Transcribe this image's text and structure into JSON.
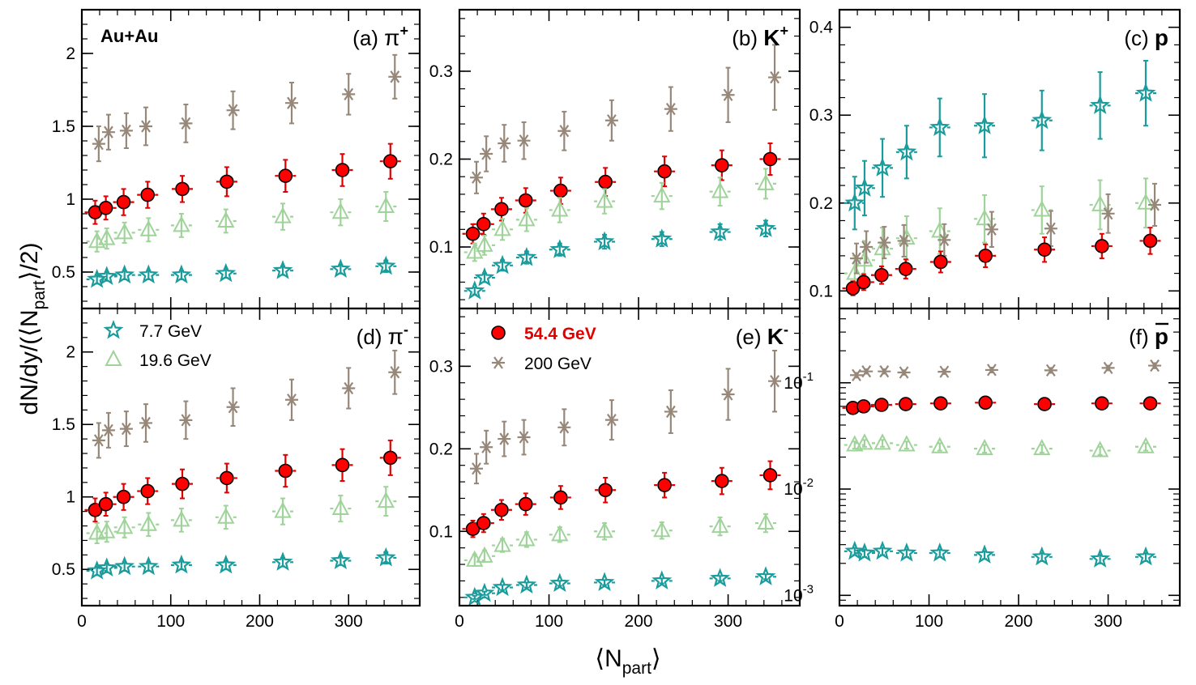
{
  "figure": {
    "xlabel": "⟨N",
    "xlabel_sub": "part",
    "xlabel_close": "⟩",
    "ylabel": "dN/dy/(⟨N",
    "ylabel_sub": "part",
    "ylabel_close": "⟩/2)",
    "system": "Au+Au"
  },
  "legend": [
    {
      "name": "7.7 GeV",
      "marker": "star",
      "color": "#1a9c9c"
    },
    {
      "name": "19.6 GeV",
      "marker": "triangle",
      "color": "#9fd39a"
    },
    {
      "name": "54.4 GeV",
      "marker": "circle",
      "color": "#e00000",
      "bold": true
    },
    {
      "name": "200 GeV",
      "marker": "asterisk",
      "color": "#968778"
    }
  ],
  "chart_data": [
    {
      "type": "scatter",
      "panel": "a",
      "tag": "(a)",
      "particle": "π",
      "charge": "+",
      "ylim": [
        0.25,
        2.3
      ],
      "yscale": "linear",
      "xlim": [
        0,
        380
      ],
      "yticks": [
        0.5,
        1,
        1.5,
        2
      ],
      "yticklabels": [
        "0.5",
        "1",
        "1.5",
        "2"
      ],
      "xticks": [
        0,
        100,
        200,
        300
      ],
      "xticklabels": [
        "0",
        "100",
        "200",
        "300"
      ],
      "series": [
        {
          "name": "200 GeV",
          "x": [
            19,
            30,
            50,
            72,
            117,
            170,
            236,
            300,
            352
          ],
          "y": [
            1.38,
            1.46,
            1.47,
            1.5,
            1.52,
            1.61,
            1.66,
            1.72,
            1.84
          ],
          "yerr": [
            0.12,
            0.12,
            0.12,
            0.13,
            0.13,
            0.13,
            0.14,
            0.14,
            0.15
          ]
        },
        {
          "name": "54.4 GeV",
          "x": [
            15,
            27,
            47,
            74,
            113,
            163,
            229,
            293,
            347
          ],
          "y": [
            0.91,
            0.94,
            0.98,
            1.03,
            1.07,
            1.12,
            1.16,
            1.2,
            1.26
          ],
          "yerr": [
            0.08,
            0.08,
            0.09,
            0.09,
            0.09,
            0.1,
            0.11,
            0.11,
            0.12
          ]
        },
        {
          "name": "19.6 GeV",
          "x": [
            17,
            28,
            48,
            75,
            112,
            162,
            226,
            291,
            342
          ],
          "y": [
            0.71,
            0.73,
            0.77,
            0.79,
            0.82,
            0.85,
            0.88,
            0.91,
            0.95
          ],
          "yerr": [
            0.07,
            0.07,
            0.07,
            0.08,
            0.08,
            0.08,
            0.09,
            0.09,
            0.1
          ]
        },
        {
          "name": "7.7 GeV",
          "x": [
            17,
            28,
            48,
            75,
            112,
            162,
            226,
            291,
            342
          ],
          "y": [
            0.45,
            0.47,
            0.48,
            0.48,
            0.48,
            0.49,
            0.51,
            0.52,
            0.54
          ],
          "yerr": [
            0.03,
            0.03,
            0.03,
            0.03,
            0.03,
            0.03,
            0.03,
            0.03,
            0.04
          ]
        }
      ]
    },
    {
      "type": "scatter",
      "panel": "b",
      "tag": "(b)",
      "particle": "K",
      "charge": "+",
      "ylim": [
        0.03,
        0.37
      ],
      "yscale": "linear",
      "xlim": [
        0,
        380
      ],
      "yticks": [
        0.1,
        0.2,
        0.3
      ],
      "yticklabels": [
        "0.1",
        "0.2",
        "0.3"
      ],
      "xticks": [
        0,
        100,
        200,
        300
      ],
      "xticklabels": [
        "0",
        "100",
        "200",
        "300"
      ],
      "series": [
        {
          "name": "200 GeV",
          "x": [
            19,
            30,
            50,
            72,
            117,
            170,
            236,
            300,
            352
          ],
          "y": [
            0.179,
            0.206,
            0.218,
            0.221,
            0.232,
            0.244,
            0.257,
            0.273,
            0.293
          ],
          "yerr": [
            0.018,
            0.02,
            0.021,
            0.021,
            0.022,
            0.023,
            0.025,
            0.031,
            0.037
          ]
        },
        {
          "name": "54.4 GeV",
          "x": [
            15,
            27,
            47,
            74,
            113,
            163,
            229,
            293,
            347
          ],
          "y": [
            0.115,
            0.126,
            0.143,
            0.153,
            0.164,
            0.174,
            0.186,
            0.193,
            0.2
          ],
          "yerr": [
            0.011,
            0.012,
            0.013,
            0.014,
            0.015,
            0.016,
            0.017,
            0.017,
            0.018
          ]
        },
        {
          "name": "19.6 GeV",
          "x": [
            17,
            28,
            48,
            75,
            112,
            162,
            226,
            291,
            342
          ],
          "y": [
            0.094,
            0.102,
            0.12,
            0.131,
            0.142,
            0.152,
            0.158,
            0.163,
            0.172
          ],
          "yerr": [
            0.01,
            0.011,
            0.012,
            0.013,
            0.014,
            0.014,
            0.015,
            0.016,
            0.017
          ]
        },
        {
          "name": "7.7 GeV",
          "x": [
            17,
            28,
            48,
            75,
            112,
            162,
            226,
            291,
            342
          ],
          "y": [
            0.05,
            0.065,
            0.079,
            0.088,
            0.097,
            0.106,
            0.109,
            0.117,
            0.121
          ],
          "yerr": [
            0.004,
            0.005,
            0.006,
            0.007,
            0.007,
            0.008,
            0.008,
            0.009,
            0.009
          ]
        }
      ]
    },
    {
      "type": "scatter",
      "panel": "c",
      "tag": "(c)",
      "particle": "p",
      "charge": "",
      "ylim": [
        0.08,
        0.42
      ],
      "yscale": "linear",
      "xlim": [
        0,
        380
      ],
      "yticks": [
        0.1,
        0.2,
        0.3,
        0.4
      ],
      "yticklabels": [
        "0.1",
        "0.2",
        "0.3",
        "0.4"
      ],
      "xticks": [
        0,
        100,
        200,
        300
      ],
      "xticklabels": [
        "0",
        "100",
        "200",
        "300"
      ],
      "series": [
        {
          "name": "7.7 GeV",
          "x": [
            17,
            28,
            48,
            75,
            112,
            162,
            226,
            291,
            342
          ],
          "y": [
            0.2,
            0.217,
            0.24,
            0.258,
            0.286,
            0.288,
            0.294,
            0.311,
            0.325
          ],
          "yerr": [
            0.03,
            0.031,
            0.033,
            0.03,
            0.033,
            0.036,
            0.034,
            0.038,
            0.037
          ]
        },
        {
          "name": "19.6 GeV",
          "x": [
            17,
            28,
            48,
            75,
            112,
            162,
            226,
            291,
            342
          ],
          "y": [
            0.12,
            0.135,
            0.148,
            0.16,
            0.168,
            0.182,
            0.192,
            0.198,
            0.2
          ],
          "yerr": [
            0.02,
            0.022,
            0.024,
            0.025,
            0.026,
            0.027,
            0.027,
            0.028,
            0.028
          ]
        },
        {
          "name": "200 GeV",
          "x": [
            19,
            30,
            50,
            72,
            117,
            170,
            236,
            300,
            352
          ],
          "y": [
            0.137,
            0.15,
            0.155,
            0.157,
            0.158,
            0.17,
            0.171,
            0.188,
            0.198
          ],
          "yerr": [
            0.017,
            0.018,
            0.018,
            0.018,
            0.018,
            0.02,
            0.02,
            0.022,
            0.024
          ]
        },
        {
          "name": "54.4 GeV",
          "x": [
            15,
            27,
            47,
            74,
            113,
            163,
            229,
            293,
            347
          ],
          "y": [
            0.103,
            0.11,
            0.118,
            0.125,
            0.133,
            0.14,
            0.147,
            0.151,
            0.157
          ],
          "yerr": [
            0.008,
            0.009,
            0.01,
            0.011,
            0.012,
            0.013,
            0.014,
            0.014,
            0.015
          ]
        }
      ]
    },
    {
      "type": "scatter",
      "panel": "d",
      "tag": "(d)",
      "particle": "π",
      "charge": "-",
      "ylim": [
        0.25,
        2.3
      ],
      "yscale": "linear",
      "xlim": [
        0,
        380
      ],
      "yticks": [
        0.5,
        1,
        1.5,
        2
      ],
      "yticklabels": [
        "0.5",
        "1",
        "1.5",
        "2"
      ],
      "xticks": [
        0,
        100,
        200,
        300
      ],
      "xticklabels": [
        "0",
        "100",
        "200",
        "300"
      ],
      "series": [
        {
          "name": "200 GeV",
          "x": [
            19,
            30,
            50,
            72,
            117,
            170,
            236,
            300,
            352
          ],
          "y": [
            1.39,
            1.46,
            1.47,
            1.51,
            1.53,
            1.62,
            1.67,
            1.75,
            1.86
          ],
          "yerr": [
            0.12,
            0.12,
            0.12,
            0.13,
            0.13,
            0.13,
            0.14,
            0.14,
            0.15
          ]
        },
        {
          "name": "54.4 GeV",
          "x": [
            15,
            27,
            47,
            74,
            113,
            163,
            229,
            293,
            347
          ],
          "y": [
            0.91,
            0.95,
            1.0,
            1.04,
            1.09,
            1.13,
            1.18,
            1.22,
            1.27
          ],
          "yerr": [
            0.08,
            0.08,
            0.09,
            0.09,
            0.1,
            0.1,
            0.11,
            0.11,
            0.12
          ]
        },
        {
          "name": "19.6 GeV",
          "x": [
            17,
            28,
            48,
            75,
            112,
            162,
            226,
            291,
            342
          ],
          "y": [
            0.75,
            0.76,
            0.79,
            0.81,
            0.84,
            0.86,
            0.9,
            0.92,
            0.97
          ],
          "yerr": [
            0.07,
            0.07,
            0.07,
            0.08,
            0.08,
            0.08,
            0.09,
            0.09,
            0.1
          ]
        },
        {
          "name": "7.7 GeV",
          "x": [
            17,
            28,
            48,
            75,
            112,
            162,
            226,
            291,
            342
          ],
          "y": [
            0.49,
            0.51,
            0.52,
            0.52,
            0.53,
            0.53,
            0.55,
            0.56,
            0.58
          ],
          "yerr": [
            0.03,
            0.03,
            0.03,
            0.03,
            0.03,
            0.03,
            0.03,
            0.03,
            0.04
          ]
        }
      ]
    },
    {
      "type": "scatter",
      "panel": "e",
      "tag": "(e)",
      "particle": "K",
      "charge": "-",
      "ylim": [
        0.01,
        0.37
      ],
      "yscale": "linear",
      "xlim": [
        0,
        380
      ],
      "yticks": [
        0.1,
        0.2,
        0.3
      ],
      "yticklabels": [
        "0.1",
        "0.2",
        "0.3"
      ],
      "xticks": [
        0,
        100,
        200,
        300
      ],
      "xticklabels": [
        "0",
        "100",
        "200",
        "300"
      ],
      "series": [
        {
          "name": "200 GeV",
          "x": [
            19,
            30,
            50,
            72,
            117,
            170,
            236,
            300,
            352
          ],
          "y": [
            0.176,
            0.202,
            0.212,
            0.214,
            0.226,
            0.235,
            0.245,
            0.266,
            0.282
          ],
          "yerr": [
            0.018,
            0.02,
            0.021,
            0.021,
            0.022,
            0.024,
            0.026,
            0.031,
            0.037
          ]
        },
        {
          "name": "54.4 GeV",
          "x": [
            15,
            27,
            47,
            74,
            113,
            163,
            229,
            293,
            347
          ],
          "y": [
            0.103,
            0.11,
            0.126,
            0.133,
            0.141,
            0.15,
            0.156,
            0.161,
            0.168
          ],
          "yerr": [
            0.01,
            0.011,
            0.012,
            0.013,
            0.014,
            0.015,
            0.015,
            0.016,
            0.017
          ]
        },
        {
          "name": "19.6 GeV",
          "x": [
            17,
            28,
            48,
            75,
            112,
            162,
            226,
            291,
            342
          ],
          "y": [
            0.065,
            0.07,
            0.083,
            0.09,
            0.096,
            0.1,
            0.101,
            0.106,
            0.11
          ],
          "yerr": [
            0.007,
            0.007,
            0.008,
            0.009,
            0.009,
            0.01,
            0.01,
            0.011,
            0.011
          ]
        },
        {
          "name": "7.7 GeV",
          "x": [
            17,
            28,
            48,
            75,
            112,
            162,
            226,
            291,
            342
          ],
          "y": [
            0.02,
            0.025,
            0.032,
            0.035,
            0.037,
            0.038,
            0.04,
            0.043,
            0.045
          ],
          "yerr": [
            0.002,
            0.002,
            0.003,
            0.003,
            0.003,
            0.003,
            0.003,
            0.003,
            0.003
          ]
        }
      ]
    },
    {
      "type": "scatter",
      "panel": "f",
      "tag": "(f)",
      "particle": "p",
      "charge": "",
      "bar": true,
      "ylim": [
        0.0008,
        0.5
      ],
      "yscale": "log",
      "xlim": [
        0,
        380
      ],
      "yticks": [
        0.001,
        0.01,
        0.1
      ],
      "yticklabels": [
        "10",
        "10",
        "10"
      ],
      "ytickexp": [
        "-3",
        "-2",
        "-1"
      ],
      "xticks": [
        0,
        100,
        200,
        300
      ],
      "xticklabels": [
        "0",
        "100",
        "200",
        "300"
      ],
      "series": [
        {
          "name": "200 GeV",
          "x": [
            19,
            30,
            50,
            72,
            117,
            170,
            236,
            300,
            352
          ],
          "y": [
            0.118,
            0.128,
            0.128,
            0.125,
            0.127,
            0.132,
            0.131,
            0.138,
            0.145
          ],
          "yerr": [
            0.006,
            0.006,
            0.006,
            0.006,
            0.006,
            0.007,
            0.007,
            0.007,
            0.008
          ]
        },
        {
          "name": "54.4 GeV",
          "x": [
            15,
            27,
            47,
            74,
            113,
            163,
            229,
            293,
            347
          ],
          "y": [
            0.058,
            0.06,
            0.062,
            0.063,
            0.064,
            0.065,
            0.063,
            0.064,
            0.064
          ],
          "yerr": [
            0.003,
            0.003,
            0.003,
            0.003,
            0.003,
            0.003,
            0.003,
            0.003,
            0.003
          ]
        },
        {
          "name": "19.6 GeV",
          "x": [
            17,
            28,
            48,
            75,
            112,
            162,
            226,
            291,
            342
          ],
          "y": [
            0.026,
            0.027,
            0.027,
            0.026,
            0.025,
            0.024,
            0.024,
            0.023,
            0.025
          ],
          "yerr": [
            0.002,
            0.002,
            0.002,
            0.002,
            0.002,
            0.002,
            0.002,
            0.002,
            0.002
          ]
        },
        {
          "name": "7.7 GeV",
          "x": [
            17,
            28,
            48,
            75,
            112,
            162,
            226,
            291,
            342
          ],
          "y": [
            0.0026,
            0.0025,
            0.0026,
            0.0025,
            0.0025,
            0.0024,
            0.0023,
            0.0022,
            0.0023
          ],
          "yerr": [
            0.0002,
            0.0002,
            0.0002,
            0.0002,
            0.0002,
            0.0002,
            0.0002,
            0.0002,
            0.0002
          ]
        }
      ]
    }
  ]
}
